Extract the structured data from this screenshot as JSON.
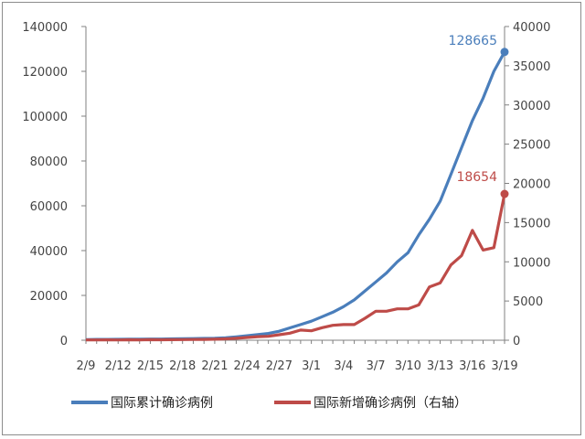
{
  "chart_data": {
    "type": "line",
    "title": "",
    "x": [
      "2/9",
      "2/10",
      "2/11",
      "2/12",
      "2/13",
      "2/14",
      "2/15",
      "2/16",
      "2/17",
      "2/18",
      "2/19",
      "2/20",
      "2/21",
      "2/22",
      "2/23",
      "2/24",
      "2/25",
      "2/26",
      "2/27",
      "2/28",
      "2/29",
      "3/1",
      "3/2",
      "3/3",
      "3/4",
      "3/5",
      "3/6",
      "3/7",
      "3/8",
      "3/9",
      "3/10",
      "3/11",
      "3/12",
      "3/13",
      "3/14",
      "3/15",
      "3/16",
      "3/17",
      "3/18",
      "3/19"
    ],
    "x_tick_labels": [
      "2/9",
      "2/12",
      "2/15",
      "2/18",
      "2/21",
      "2/24",
      "2/27",
      "3/1",
      "3/4",
      "3/7",
      "3/10",
      "3/13",
      "3/16",
      "3/19"
    ],
    "legend_position": "bottom",
    "grid": false,
    "y_left": {
      "min": 0,
      "max": 140000,
      "ticks": [
        "0",
        "20000",
        "40000",
        "60000",
        "80000",
        "100000",
        "120000",
        "140000"
      ]
    },
    "y_right": {
      "min": 0,
      "max": 40000,
      "ticks": [
        "0",
        "5000",
        "10000",
        "15000",
        "20000",
        "25000",
        "30000",
        "35000",
        "40000"
      ]
    },
    "series": [
      {
        "name": "国际累计确诊病例",
        "axis": "left",
        "color": "#4a7ebb",
        "end_label": "128665",
        "values": [
          300,
          350,
          380,
          400,
          430,
          470,
          520,
          550,
          600,
          680,
          730,
          800,
          900,
          1100,
          1500,
          2000,
          2500,
          3000,
          4000,
          5500,
          7000,
          8500,
          10500,
          12500,
          15000,
          18000,
          22000,
          26000,
          30000,
          35000,
          39000,
          47000,
          54000,
          62000,
          74000,
          86000,
          98000,
          108000,
          120000,
          128665
        ]
      },
      {
        "name": "国际新增确诊病例（右轴）",
        "axis": "right",
        "color": "#be4b48",
        "end_label": "18654",
        "values": [
          30,
          40,
          50,
          40,
          60,
          50,
          70,
          60,
          70,
          80,
          90,
          100,
          130,
          180,
          250,
          350,
          450,
          500,
          700,
          900,
          1300,
          1200,
          1600,
          1900,
          2000,
          2000,
          2800,
          3700,
          3700,
          4000,
          4000,
          4500,
          6800,
          7300,
          9600,
          10800,
          14000,
          11500,
          11800,
          18654
        ]
      }
    ]
  }
}
